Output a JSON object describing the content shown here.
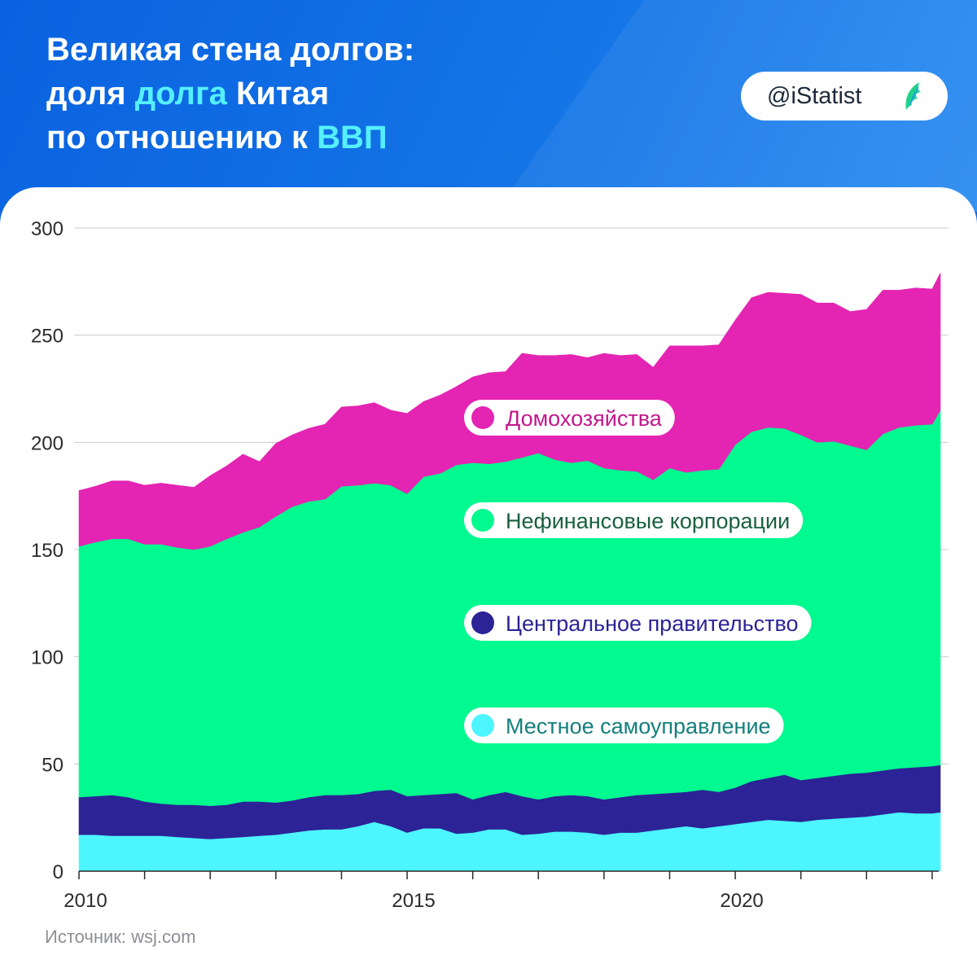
{
  "header": {
    "title_line1": "Великая стена долгов:",
    "title_line2_pre": "доля ",
    "title_line2_hl": "долга",
    "title_line2_post": " Китая",
    "title_line3_pre": "по отношению к ",
    "title_line3_hl": "ВВП",
    "brand": "@iStatist"
  },
  "colors": {
    "households": "#e424b2",
    "corporations": "#00fa8f",
    "central_gov": "#2c2396",
    "local_gov": "#4cf5ff",
    "title_highlight": "#55f0ff",
    "header_bg": "#0a62e0"
  },
  "source": "Источник: wsj.com",
  "chart_data": {
    "type": "area",
    "stacked": true,
    "grid": true,
    "legend_placement": "inside-center",
    "ylim": [
      0,
      300
    ],
    "yticks": [
      0,
      50,
      100,
      150,
      200,
      250,
      300
    ],
    "xlim": [
      2010,
      2023.125
    ],
    "xtick_labels": [
      {
        "x": 2010,
        "label": "2010"
      },
      {
        "x": 2015,
        "label": "2015"
      },
      {
        "x": 2020,
        "label": "2020"
      }
    ],
    "xticks_minor": [
      2011,
      2012,
      2013,
      2014,
      2016,
      2017,
      2018,
      2019,
      2021,
      2022,
      2023
    ],
    "x": [
      2010,
      2010.25,
      2010.5,
      2010.75,
      2011,
      2011.25,
      2011.5,
      2011.75,
      2012,
      2012.25,
      2012.5,
      2012.75,
      2013,
      2013.25,
      2013.5,
      2013.75,
      2014,
      2014.25,
      2014.5,
      2014.75,
      2015,
      2015.25,
      2015.5,
      2015.75,
      2016,
      2016.25,
      2016.5,
      2016.75,
      2017,
      2017.25,
      2017.5,
      2017.75,
      2018,
      2018.25,
      2018.5,
      2018.75,
      2019,
      2019.25,
      2019.5,
      2019.75,
      2020,
      2020.25,
      2020.5,
      2020.75,
      2021,
      2021.25,
      2021.5,
      2021.75,
      2022,
      2022.25,
      2022.5,
      2022.75,
      2023,
      2023.125
    ],
    "series": [
      {
        "name": "Местное самоуправление",
        "color_key": "local_gov",
        "values": [
          17,
          17,
          16.5,
          16.5,
          16.5,
          16.5,
          16,
          15.5,
          15,
          15.5,
          16,
          16.5,
          17,
          18,
          19,
          19.5,
          19.5,
          21,
          23,
          21,
          18,
          20,
          20,
          17.5,
          18,
          19.5,
          19.5,
          17,
          17.5,
          18.5,
          18.5,
          18,
          17,
          18,
          18,
          19,
          20,
          21,
          20,
          21,
          22,
          23,
          24,
          23.5,
          23,
          24,
          24.5,
          25,
          25.5,
          26.5,
          27.5,
          27,
          27,
          27.5
        ]
      },
      {
        "name": "Центральное правительство",
        "color_key": "central_gov",
        "values": [
          17.5,
          18,
          19,
          18,
          16,
          15,
          15,
          15.5,
          15.5,
          15.5,
          16.5,
          16,
          15,
          15,
          15.5,
          16,
          16,
          15,
          14.5,
          17,
          17,
          15.5,
          16,
          19,
          15.5,
          16,
          17.5,
          18,
          16,
          16.5,
          17,
          17,
          16.5,
          16.5,
          17.5,
          17,
          16.5,
          16,
          18,
          16,
          17,
          19,
          19.5,
          21.5,
          19.5,
          19.5,
          20,
          20.5,
          20.5,
          20.5,
          20.5,
          21.5,
          22,
          22
        ]
      },
      {
        "name": "Нефинансовые корпорации",
        "color_key": "corporations",
        "values": [
          117,
          118.5,
          119.5,
          120.5,
          120,
          121,
          120,
          119,
          121,
          124,
          125.5,
          128,
          133.5,
          137,
          138,
          138,
          144,
          144,
          143.5,
          142,
          141,
          148.5,
          149.5,
          153,
          157,
          154.5,
          154,
          158,
          161.5,
          157,
          155,
          156.5,
          154.5,
          152.5,
          151,
          146.5,
          151.5,
          149,
          149,
          150.5,
          160,
          163,
          163.5,
          161.5,
          161,
          156.5,
          156,
          153,
          150.5,
          157,
          159,
          159.5,
          159.5,
          165.5
        ]
      },
      {
        "name": "Домохозяйства",
        "color_key": "households",
        "values": [
          26,
          26,
          27,
          27,
          27.5,
          28.5,
          29,
          29,
          33,
          34,
          36.5,
          30.5,
          34,
          33.5,
          34,
          35,
          37,
          37,
          37.5,
          35,
          37.5,
          35,
          36.5,
          36.5,
          40,
          42.5,
          42,
          48.5,
          45.5,
          48.5,
          50.5,
          48,
          53.5,
          53.5,
          54.5,
          52.5,
          57,
          59,
          58,
          58,
          58,
          62.5,
          63,
          63,
          65.5,
          65,
          64.5,
          62.5,
          65.5,
          67,
          64,
          64,
          63,
          64
        ]
      }
    ],
    "legend": [
      {
        "label": "Домохозяйства",
        "color_key": "households",
        "text_color": "#c2188d"
      },
      {
        "label": "Нефинансовые корпорации",
        "color_key": "corporations",
        "text_color": "#1a6040"
      },
      {
        "label": "Центральное правительство",
        "color_key": "central_gov",
        "text_color": "#2c2396"
      },
      {
        "label": "Местное самоуправление",
        "color_key": "local_gov",
        "text_color": "#13807d"
      }
    ]
  }
}
